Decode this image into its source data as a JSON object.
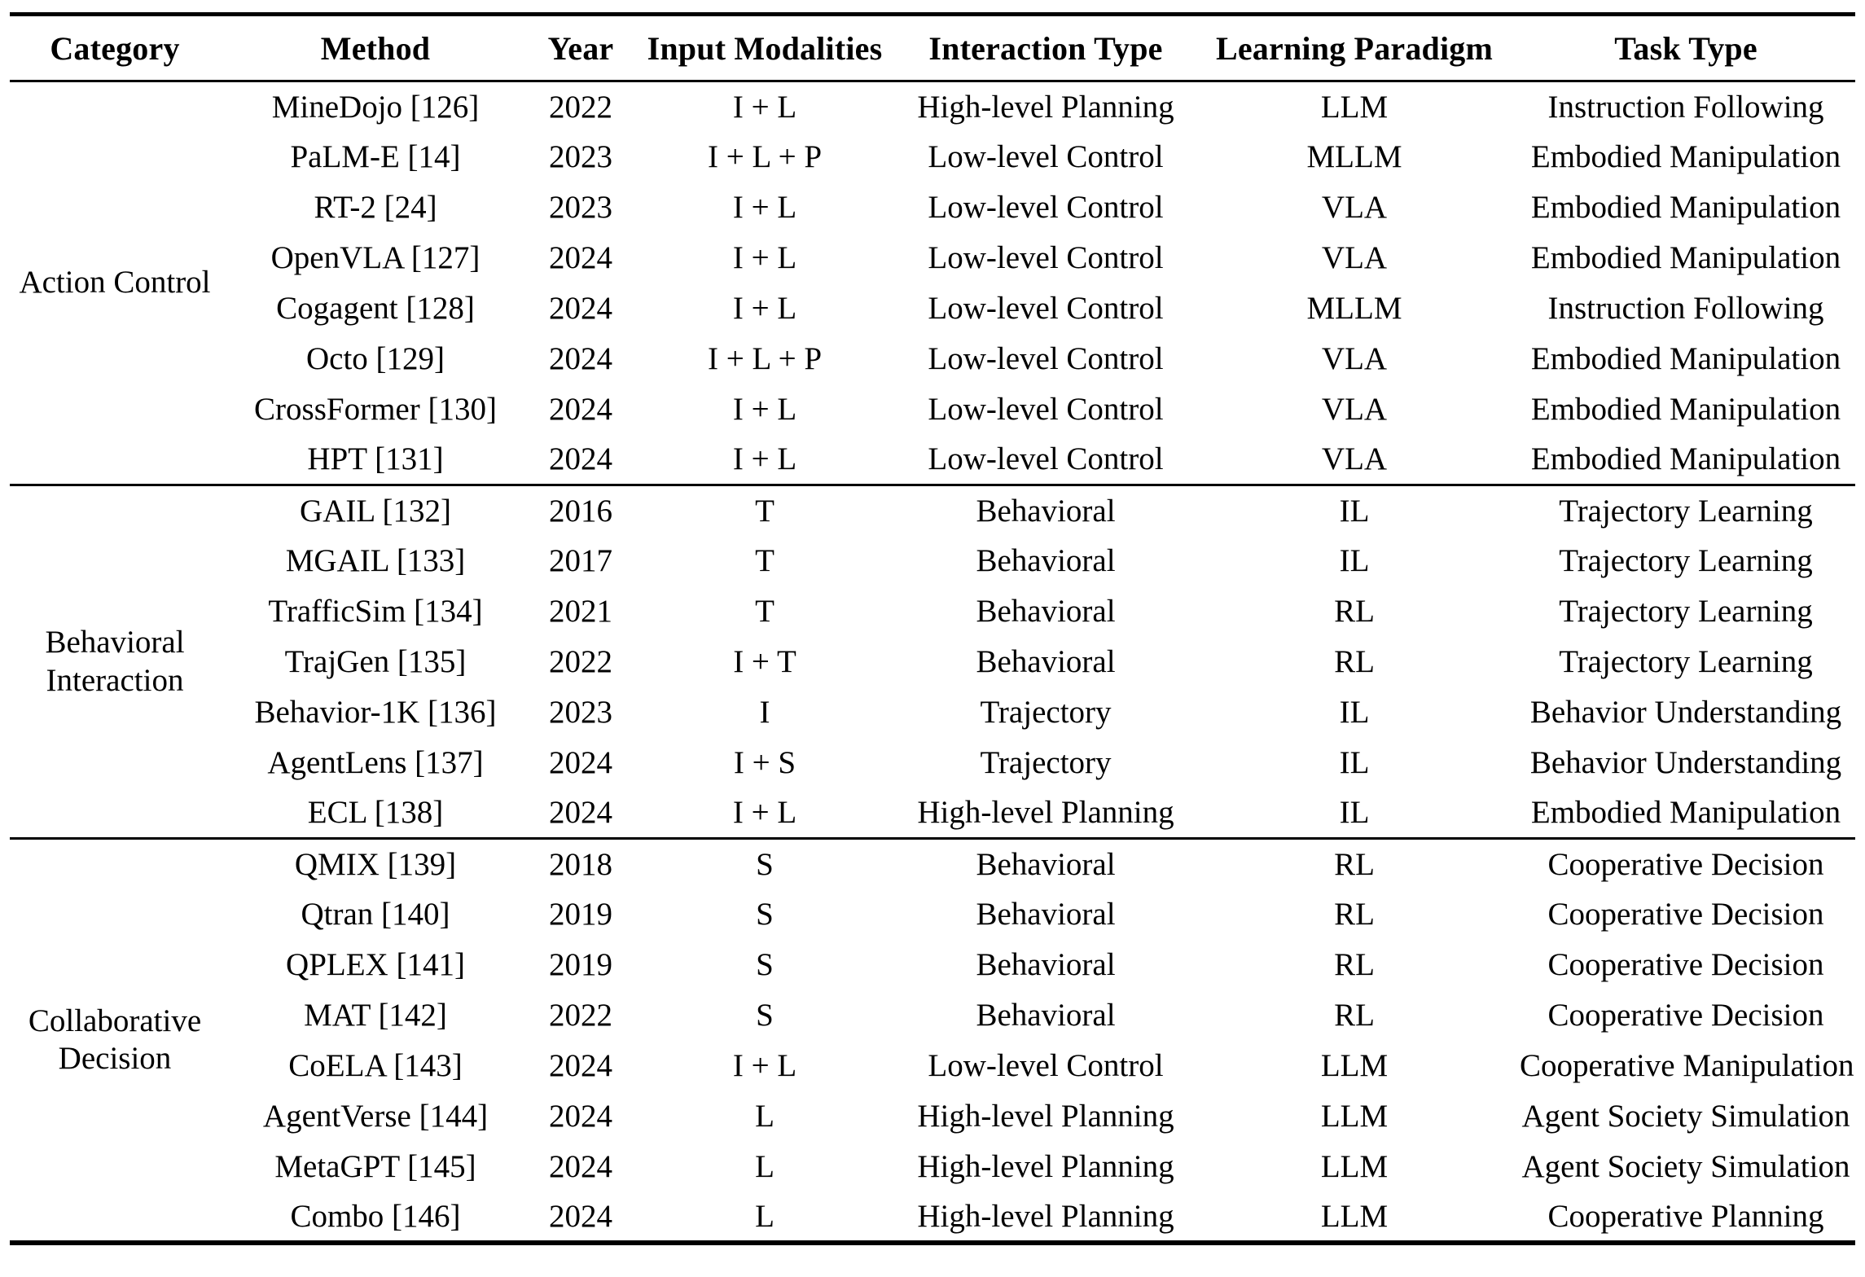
{
  "page": {
    "background": "#ffffff",
    "text_color": "#000000",
    "rule_color": "#000000"
  },
  "table": {
    "columns": [
      "Category",
      "Method",
      "Year",
      "Input Modalities",
      "Interaction Type",
      "Learning Paradigm",
      "Task Type"
    ],
    "sections": [
      {
        "category": "Action Control",
        "rows": [
          {
            "method": "MineDojo [126]",
            "year": "2022",
            "input_modalities": "I + L",
            "interaction_type": "High-level Planning",
            "learning_paradigm": "LLM",
            "task_type": "Instruction Following"
          },
          {
            "method": "PaLM-E [14]",
            "year": "2023",
            "input_modalities": "I + L + P",
            "interaction_type": "Low-level Control",
            "learning_paradigm": "MLLM",
            "task_type": "Embodied Manipulation"
          },
          {
            "method": "RT-2 [24]",
            "year": "2023",
            "input_modalities": "I + L",
            "interaction_type": "Low-level Control",
            "learning_paradigm": "VLA",
            "task_type": "Embodied Manipulation"
          },
          {
            "method": "OpenVLA [127]",
            "year": "2024",
            "input_modalities": "I + L",
            "interaction_type": "Low-level Control",
            "learning_paradigm": "VLA",
            "task_type": "Embodied Manipulation"
          },
          {
            "method": "Cogagent [128]",
            "year": "2024",
            "input_modalities": "I + L",
            "interaction_type": "Low-level Control",
            "learning_paradigm": "MLLM",
            "task_type": "Instruction Following"
          },
          {
            "method": "Octo [129]",
            "year": "2024",
            "input_modalities": "I + L + P",
            "interaction_type": "Low-level Control",
            "learning_paradigm": "VLA",
            "task_type": "Embodied Manipulation"
          },
          {
            "method": "CrossFormer [130]",
            "year": "2024",
            "input_modalities": "I + L",
            "interaction_type": "Low-level Control",
            "learning_paradigm": "VLA",
            "task_type": "Embodied Manipulation"
          },
          {
            "method": "HPT [131]",
            "year": "2024",
            "input_modalities": "I + L",
            "interaction_type": "Low-level Control",
            "learning_paradigm": "VLA",
            "task_type": "Embodied Manipulation"
          }
        ]
      },
      {
        "category": "Behavioral Interaction",
        "rows": [
          {
            "method": "GAIL [132]",
            "year": "2016",
            "input_modalities": "T",
            "interaction_type": "Behavioral",
            "learning_paradigm": "IL",
            "task_type": "Trajectory Learning"
          },
          {
            "method": "MGAIL [133]",
            "year": "2017",
            "input_modalities": "T",
            "interaction_type": "Behavioral",
            "learning_paradigm": "IL",
            "task_type": "Trajectory Learning"
          },
          {
            "method": "TrafficSim [134]",
            "year": "2021",
            "input_modalities": "T",
            "interaction_type": "Behavioral",
            "learning_paradigm": "RL",
            "task_type": "Trajectory Learning"
          },
          {
            "method": "TrajGen [135]",
            "year": "2022",
            "input_modalities": "I + T",
            "interaction_type": "Behavioral",
            "learning_paradigm": "RL",
            "task_type": "Trajectory Learning"
          },
          {
            "method": "Behavior-1K [136]",
            "year": "2023",
            "input_modalities": "I",
            "interaction_type": "Trajectory",
            "learning_paradigm": "IL",
            "task_type": "Behavior Understanding"
          },
          {
            "method": "AgentLens [137]",
            "year": "2024",
            "input_modalities": "I + S",
            "interaction_type": "Trajectory",
            "learning_paradigm": "IL",
            "task_type": "Behavior Understanding"
          },
          {
            "method": "ECL [138]",
            "year": "2024",
            "input_modalities": "I + L",
            "interaction_type": "High-level Planning",
            "learning_paradigm": "IL",
            "task_type": "Embodied Manipulation"
          }
        ]
      },
      {
        "category": "Collaborative Decision",
        "rows": [
          {
            "method": "QMIX [139]",
            "year": "2018",
            "input_modalities": "S",
            "interaction_type": "Behavioral",
            "learning_paradigm": "RL",
            "task_type": "Cooperative Decision"
          },
          {
            "method": "Qtran [140]",
            "year": "2019",
            "input_modalities": "S",
            "interaction_type": "Behavioral",
            "learning_paradigm": "RL",
            "task_type": "Cooperative Decision"
          },
          {
            "method": "QPLEX [141]",
            "year": "2019",
            "input_modalities": "S",
            "interaction_type": "Behavioral",
            "learning_paradigm": "RL",
            "task_type": "Cooperative Decision"
          },
          {
            "method": "MAT [142]",
            "year": "2022",
            "input_modalities": "S",
            "interaction_type": "Behavioral",
            "learning_paradigm": "RL",
            "task_type": "Cooperative Decision"
          },
          {
            "method": "CoELA [143]",
            "year": "2024",
            "input_modalities": "I + L",
            "interaction_type": "Low-level Control",
            "learning_paradigm": "LLM",
            "task_type": "Cooperative Manipulation"
          },
          {
            "method": "AgentVerse [144]",
            "year": "2024",
            "input_modalities": "L",
            "interaction_type": "High-level Planning",
            "learning_paradigm": "LLM",
            "task_type": "Agent Society Simulation"
          },
          {
            "method": "MetaGPT [145]",
            "year": "2024",
            "input_modalities": "L",
            "interaction_type": "High-level Planning",
            "learning_paradigm": "LLM",
            "task_type": "Agent Society Simulation"
          },
          {
            "method": "Combo [146]",
            "year": "2024",
            "input_modalities": "L",
            "interaction_type": "High-level Planning",
            "learning_paradigm": "LLM",
            "task_type": "Cooperative Planning"
          }
        ]
      }
    ]
  }
}
